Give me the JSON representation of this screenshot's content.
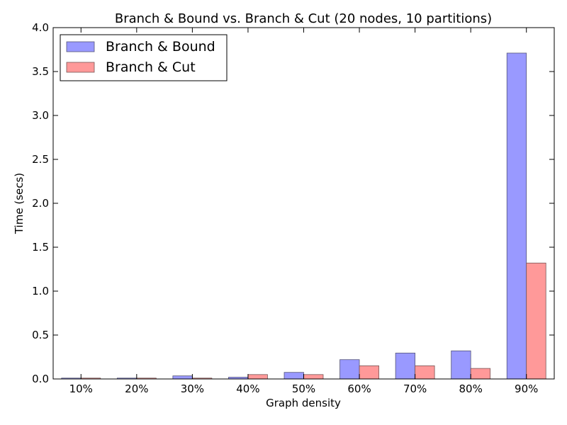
{
  "chart_data": {
    "type": "bar",
    "title": "Branch & Bound vs. Branch & Cut (20 nodes, 10 partitions)",
    "xlabel": "Graph density",
    "ylabel": "Time (secs)",
    "categories": [
      "10%",
      "20%",
      "30%",
      "40%",
      "50%",
      "60%",
      "70%",
      "80%",
      "90%"
    ],
    "ylim": [
      0,
      4.0
    ],
    "yticks": [
      "0.0",
      "0.5",
      "1.0",
      "1.5",
      "2.0",
      "2.5",
      "3.0",
      "3.5",
      "4.0"
    ],
    "grid": false,
    "legend_position": "top-left",
    "series": [
      {
        "name": "Branch & Bound",
        "color": "#9999ff",
        "values": [
          0.01,
          0.01,
          0.035,
          0.02,
          0.075,
          0.22,
          0.295,
          0.32,
          3.71
        ]
      },
      {
        "name": "Branch & Cut",
        "color": "#ff9999",
        "values": [
          0.01,
          0.01,
          0.01,
          0.05,
          0.05,
          0.15,
          0.15,
          0.12,
          1.32
        ]
      }
    ]
  }
}
